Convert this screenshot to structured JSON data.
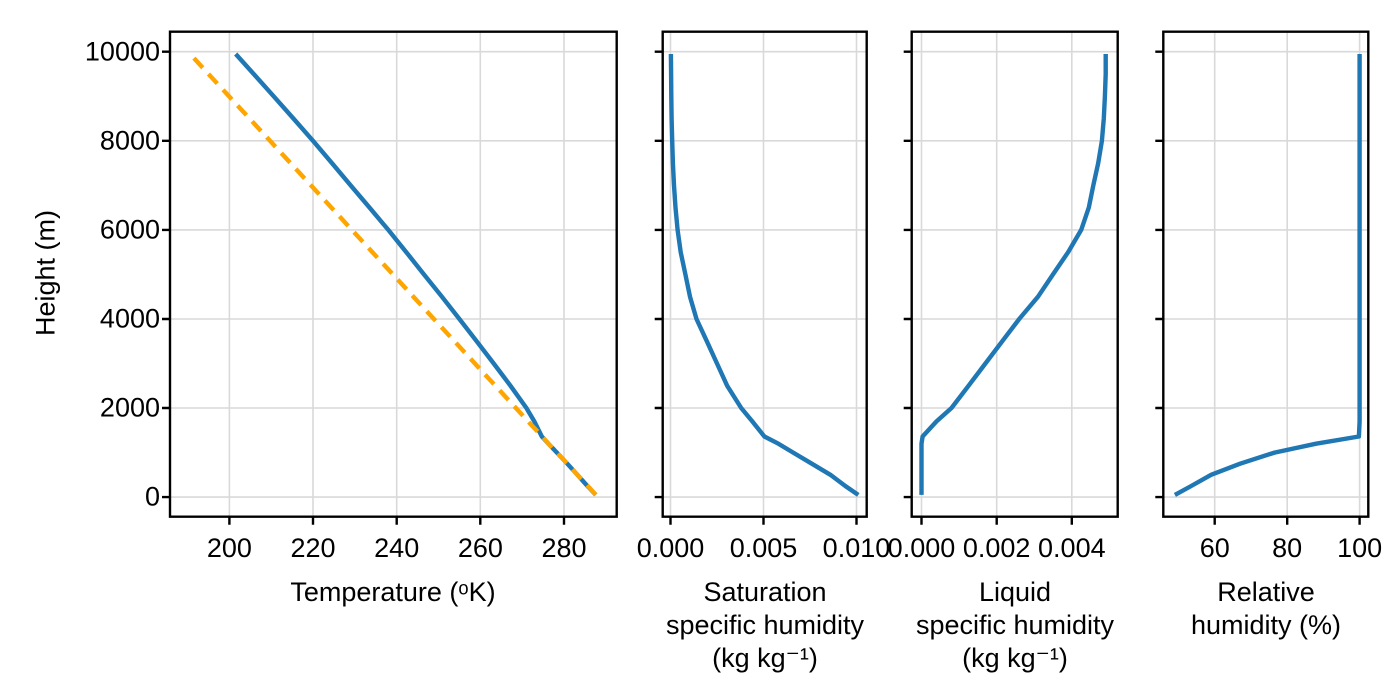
{
  "figure": {
    "background_color": "#ffffff",
    "grid_color": "#d9d9d9",
    "spine_color": "#000000",
    "text_color": "#000000",
    "profile_line_color": "#1f77b4",
    "dry_adiabat_color": "#ffa500"
  },
  "y_axis": {
    "label": "Height (m)",
    "lim": [
      -440,
      10450
    ],
    "ticks": [
      0,
      2000,
      4000,
      6000,
      8000,
      10000
    ],
    "tick_labels": [
      "0",
      "2000",
      "4000",
      "6000",
      "8000",
      "10000"
    ]
  },
  "chart_data": [
    {
      "type": "line",
      "name": "temperature-panel",
      "xlabel": "Temperature (ᵒK)",
      "xlabel_lines": [
        "Temperature (ᵒK)"
      ],
      "xlim": [
        185.8,
        292.6
      ],
      "xticks": [
        200,
        220,
        240,
        260,
        280
      ],
      "xtick_labels": [
        "200",
        "220",
        "240",
        "260",
        "280"
      ],
      "grid": true,
      "legend": "none",
      "series": [
        {
          "name": "temperature-profile",
          "color": "#1f77b4",
          "line_style": "solid",
          "height_m": [
            50,
            250,
            500,
            750,
            1000,
            1200,
            1360,
            1700,
            2000,
            2500,
            3000,
            3500,
            4000,
            4500,
            5000,
            5500,
            6000,
            6500,
            7000,
            7500,
            8000,
            8500,
            9000,
            9500,
            9950
          ],
          "x": [
            287.6,
            285.6,
            283.2,
            280.8,
            278.3,
            276.3,
            274.7,
            272.9,
            271.0,
            267.2,
            263.2,
            259.1,
            255.0,
            250.8,
            246.5,
            242.3,
            238.0,
            233.5,
            229.0,
            224.5,
            220.0,
            215.3,
            210.6,
            205.8,
            201.5
          ]
        },
        {
          "name": "dry-adiabat",
          "color": "#ffa500",
          "line_style": "dashed",
          "height_m": [
            50,
            250,
            500,
            750,
            1000,
            1200,
            1360,
            1700,
            2000,
            2500,
            3000,
            3500,
            4000,
            4500,
            5000,
            5500,
            6000,
            6500,
            7000,
            7500,
            8000,
            8500,
            9000,
            9500,
            9950
          ],
          "x": [
            287.6,
            285.7,
            283.2,
            280.8,
            278.3,
            276.3,
            274.8,
            271.4,
            268.5,
            263.6,
            258.7,
            253.8,
            248.9,
            244.0,
            239.1,
            234.2,
            229.3,
            224.4,
            219.5,
            214.6,
            209.7,
            204.8,
            199.9,
            195.0,
            190.6
          ]
        }
      ]
    },
    {
      "type": "line",
      "name": "saturation-humidity-panel",
      "xlabel": "Saturation specific humidity (kg kg⁻¹)",
      "xlabel_lines": [
        "Saturation",
        "specific humidity",
        "(kg kg⁻¹)"
      ],
      "xlim": [
        -0.00042,
        0.01055
      ],
      "xticks": [
        0.0,
        0.005,
        0.01
      ],
      "xtick_labels": [
        "0.000",
        "0.005",
        "0.010"
      ],
      "grid": true,
      "legend": "none",
      "series": [
        {
          "name": "saturation-specific-humidity",
          "color": "#1f77b4",
          "line_style": "solid",
          "height_m": [
            50,
            250,
            500,
            750,
            1000,
            1200,
            1360,
            1700,
            2000,
            2500,
            3000,
            3500,
            4000,
            4500,
            5000,
            5500,
            6000,
            6500,
            7000,
            7500,
            8000,
            8500,
            9000,
            9500,
            9950
          ],
          "x": [
            0.0101,
            0.0094,
            0.0086,
            0.0076,
            0.0066,
            0.0058,
            0.00505,
            0.0044,
            0.0038,
            0.00305,
            0.0025,
            0.00195,
            0.0014,
            0.00105,
            0.0008,
            0.00055,
            0.00038,
            0.00027,
            0.00019,
            0.00013,
            9e-05,
            6e-05,
            4e-05,
            3e-05,
            2e-05
          ]
        }
      ]
    },
    {
      "type": "line",
      "name": "liquid-humidity-panel",
      "xlabel": "Liquid specific humidity (kg kg⁻¹)",
      "xlabel_lines": [
        "Liquid",
        "specific humidity",
        "(kg kg⁻¹)"
      ],
      "xlim": [
        -0.00026,
        0.00522
      ],
      "xticks": [
        0.0,
        0.002,
        0.004
      ],
      "xtick_labels": [
        "0.000",
        "0.002",
        "0.004"
      ],
      "grid": true,
      "legend": "none",
      "series": [
        {
          "name": "liquid-specific-humidity",
          "color": "#1f77b4",
          "line_style": "solid",
          "height_m": [
            50,
            250,
            500,
            750,
            1000,
            1200,
            1360,
            1700,
            2000,
            2500,
            3000,
            3500,
            4000,
            4500,
            5000,
            5500,
            6000,
            6500,
            7000,
            7500,
            8000,
            8500,
            9000,
            9500,
            9950
          ],
          "x": [
            0,
            0,
            0,
            0,
            0,
            0,
            3e-05,
            0.0004,
            0.0008,
            0.00125,
            0.0017,
            0.00215,
            0.0026,
            0.0031,
            0.0035,
            0.0039,
            0.00425,
            0.00445,
            0.00457,
            0.0047,
            0.0048,
            0.00485,
            0.00488,
            0.0049,
            0.0049
          ]
        }
      ]
    },
    {
      "type": "line",
      "name": "relative-humidity-panel",
      "xlabel": "Relative humidity (%)",
      "xlabel_lines": [
        "Relative",
        "humidity (%)"
      ],
      "xlim": [
        45.8,
        102.4
      ],
      "xticks": [
        60,
        80,
        100
      ],
      "xtick_labels": [
        "60",
        "80",
        "100"
      ],
      "grid": true,
      "legend": "none",
      "series": [
        {
          "name": "relative-humidity",
          "color": "#1f77b4",
          "line_style": "solid",
          "height_m": [
            50,
            250,
            500,
            750,
            1000,
            1200,
            1360,
            1700,
            2000,
            2500,
            3000,
            3500,
            4000,
            4500,
            5000,
            5500,
            6000,
            6500,
            7000,
            7500,
            8000,
            8500,
            9000,
            9500,
            9950
          ],
          "x": [
            49,
            53.5,
            59,
            67,
            76.5,
            88,
            99.8,
            100,
            100,
            100,
            100,
            100,
            100,
            100,
            100,
            100,
            100,
            100,
            100,
            100,
            100,
            100,
            100,
            100,
            100
          ]
        }
      ]
    }
  ]
}
